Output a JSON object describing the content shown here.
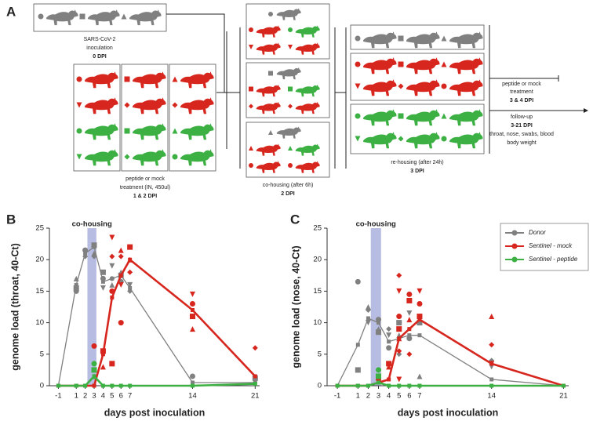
{
  "diagram": {
    "label": "A",
    "inoculation": {
      "lines": [
        "SARS-CoV-2",
        "inoculation"
      ],
      "day": "0 DPI"
    },
    "treatment": {
      "lines": [
        "peptide or mock",
        "treatment (IN, 450ul)"
      ],
      "day": "1 & 2 DPI"
    },
    "cohousing": {
      "lines": [
        "co-housing (after 6h)"
      ],
      "day": "2 DPI"
    },
    "rehousing": {
      "lines": [
        "re-housing (after 24h)"
      ],
      "day": "3 DPI"
    },
    "second_treatment": {
      "lines": [
        "peptide or mock",
        "treatment"
      ],
      "day": "3 & 4 DPI"
    },
    "followup": {
      "lines": [
        "follow-up"
      ],
      "day": "3-21 DPI",
      "notes": [
        "throat, nose, swabs, blood",
        "body weight"
      ]
    }
  },
  "chart_data": [
    {
      "type": "line",
      "panel": "B",
      "xlabel": "days post inoculation",
      "ylabel": "genome load (throat, 40-Ct)",
      "x": [
        -1,
        1,
        2,
        3,
        4,
        5,
        6,
        7,
        14,
        21
      ],
      "xlim": [
        -2,
        21.5
      ],
      "xticks": [
        -1,
        1,
        2,
        3,
        4,
        5,
        6,
        7,
        14,
        21
      ],
      "ylim": [
        0,
        25
      ],
      "yticks": [
        0,
        5,
        10,
        15,
        20,
        25
      ],
      "shade": {
        "label": "co-housing",
        "x": [
          2.25,
          3.25
        ],
        "color": "#aab0dd"
      },
      "series": [
        {
          "name": "Donor",
          "color": "#808080",
          "values": [
            0,
            16,
            21,
            22,
            16.5,
            17,
            17.5,
            15.5,
            0.5,
            0.5
          ],
          "points": [
            [
              1,
              15
            ],
            [
              1,
              15.5
            ],
            [
              1,
              17
            ],
            [
              2,
              20.5
            ],
            [
              2,
              21
            ],
            [
              2,
              21.5
            ],
            [
              3,
              22.3
            ],
            [
              3,
              21
            ],
            [
              3,
              20.5
            ],
            [
              4,
              15.5
            ],
            [
              4,
              17
            ],
            [
              4,
              18
            ],
            [
              5,
              16
            ],
            [
              5,
              17
            ],
            [
              5,
              19
            ],
            [
              6,
              16.5
            ],
            [
              6,
              17.5
            ],
            [
              6,
              18
            ],
            [
              7,
              15
            ],
            [
              7,
              16
            ],
            [
              14,
              1.5
            ],
            [
              21,
              1.2
            ]
          ]
        },
        {
          "name": "Sentinel - mock",
          "color": "#d7261e",
          "values": [
            0,
            0,
            0,
            0,
            5,
            14,
            17.5,
            20,
            12,
            1.5
          ],
          "points": [
            [
              3,
              6.3
            ],
            [
              4,
              5.5
            ],
            [
              4,
              3
            ],
            [
              5,
              20.5
            ],
            [
              5,
              23.5
            ],
            [
              5,
              15
            ],
            [
              5,
              3.5
            ],
            [
              6,
              21.5
            ],
            [
              6,
              20.5
            ],
            [
              6,
              16
            ],
            [
              6,
              10
            ],
            [
              7,
              22
            ],
            [
              7,
              20
            ],
            [
              7,
              18
            ],
            [
              14,
              14.5
            ],
            [
              14,
              13
            ],
            [
              14,
              11
            ],
            [
              14,
              9
            ],
            [
              21,
              6
            ]
          ]
        },
        {
          "name": "Sentinel - peptide",
          "color": "#3cb043",
          "values": [
            0,
            0,
            0,
            1.5,
            0,
            0,
            0,
            0,
            0,
            0.3
          ],
          "points": [
            [
              3,
              3.5
            ],
            [
              3,
              2.5
            ],
            [
              3,
              1.5
            ]
          ]
        }
      ]
    },
    {
      "type": "line",
      "panel": "C",
      "xlabel": "days post inoculation",
      "ylabel": "genome load (nose, 40-Ct)",
      "x": [
        -1,
        1,
        2,
        3,
        4,
        5,
        6,
        7,
        14,
        21
      ],
      "xlim": [
        -2,
        21.5
      ],
      "xticks": [
        -1,
        1,
        2,
        3,
        4,
        5,
        6,
        7,
        14,
        21
      ],
      "ylim": [
        0,
        25
      ],
      "yticks": [
        0,
        5,
        10,
        15,
        20,
        25
      ],
      "shade": {
        "label": "co-housing",
        "x": [
          2.25,
          3.25
        ],
        "color": "#aab0dd"
      },
      "legend": "upper right",
      "series": [
        {
          "name": "Donor",
          "color": "#808080",
          "values": [
            0,
            6.5,
            10.7,
            10,
            7,
            7.5,
            8,
            8,
            1,
            0
          ],
          "points": [
            [
              1,
              16.5
            ],
            [
              1,
              2.5
            ],
            [
              2,
              12.5
            ],
            [
              2,
              12
            ],
            [
              2,
              10
            ],
            [
              3,
              10.5
            ],
            [
              3,
              8.5
            ],
            [
              3,
              9
            ],
            [
              4,
              9
            ],
            [
              4,
              8
            ],
            [
              4,
              6
            ],
            [
              5,
              10
            ],
            [
              5,
              8
            ],
            [
              5,
              5
            ],
            [
              6,
              11.5
            ],
            [
              6,
              7.5
            ],
            [
              7,
              10
            ],
            [
              7,
              1.5
            ],
            [
              14,
              4
            ],
            [
              14,
              3
            ]
          ]
        },
        {
          "name": "Sentinel - mock",
          "color": "#d7261e",
          "values": [
            0,
            0,
            0,
            0.5,
            1,
            7.5,
            9,
            10.5,
            3.5,
            0
          ],
          "points": [
            [
              3,
              1
            ],
            [
              4,
              3.5
            ],
            [
              4,
              3
            ],
            [
              5,
              17.5
            ],
            [
              5,
              15
            ],
            [
              5,
              11
            ],
            [
              5,
              9
            ],
            [
              5,
              7.5
            ],
            [
              5,
              5.5
            ],
            [
              5,
              1
            ],
            [
              6,
              14.5
            ],
            [
              6,
              13.5
            ],
            [
              6,
              10.5
            ],
            [
              6,
              5
            ],
            [
              7,
              15
            ],
            [
              7,
              13
            ],
            [
              7,
              11
            ],
            [
              14,
              11
            ],
            [
              14,
              6.5
            ],
            [
              14,
              3.5
            ]
          ]
        },
        {
          "name": "Sentinel - peptide",
          "color": "#3cb043",
          "values": [
            0,
            0,
            0,
            0.5,
            0,
            0,
            0,
            0,
            0,
            0
          ],
          "points": [
            [
              3,
              2.5
            ],
            [
              3,
              1.5
            ]
          ]
        }
      ]
    }
  ]
}
